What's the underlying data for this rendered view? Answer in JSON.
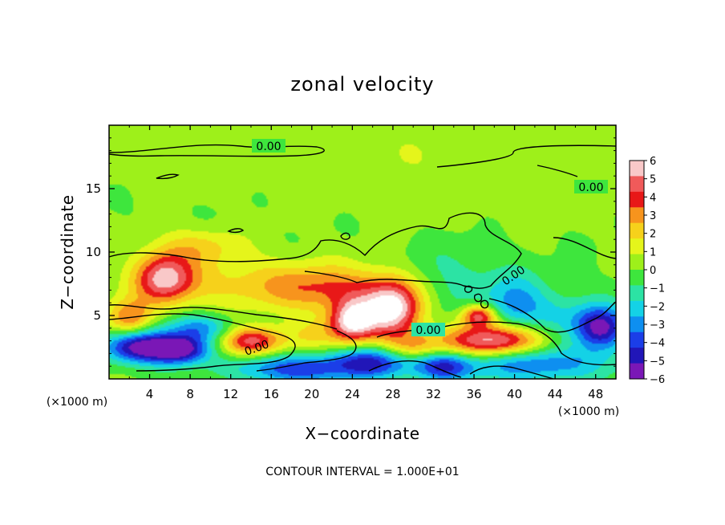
{
  "chart_data": {
    "type": "heatmap",
    "title": "zonal velocity",
    "xlabel": "X−coordinate",
    "ylabel": "Z−coordinate",
    "x_unit": "(×1000 m)",
    "x_unit_right": "(×1000 m)",
    "xlim": [
      0,
      50
    ],
    "ylim": [
      0,
      20
    ],
    "x_ticks": [
      4,
      8,
      12,
      16,
      20,
      24,
      28,
      32,
      36,
      40,
      44,
      48
    ],
    "y_ticks": [
      5,
      10,
      15
    ],
    "colorbar": {
      "ticks": [
        "6",
        "5",
        "4",
        "3",
        "2",
        "1",
        "0",
        "−1",
        "−2",
        "−3",
        "−4",
        "−5",
        "−6"
      ],
      "range": [
        -6,
        6
      ],
      "colors": [
        "#f9c8c8",
        "#f05a5a",
        "#e81818",
        "#f7941d",
        "#f6d11b",
        "#e5f51b",
        "#9ef01a",
        "#3ee63d",
        "#2ce3a4",
        "#14d2e6",
        "#0e8ff0",
        "#1b3ee8",
        "#2116b8",
        "#7a17b6"
      ]
    },
    "contour_label": "0.00",
    "footer": "CONTOUR INTERVAL = 1.000E+01",
    "blobs": [
      {
        "x": 5.5,
        "z": 8.0,
        "sx": 2.0,
        "sz": 1.4,
        "v": 5.0
      },
      {
        "x": 14.0,
        "z": 3.0,
        "sx": 2.2,
        "sz": 0.8,
        "v": 4.8
      },
      {
        "x": 24.0,
        "z": 4.5,
        "sx": 1.6,
        "sz": 1.2,
        "v": 6.0
      },
      {
        "x": 28.0,
        "z": 5.5,
        "sx": 2.0,
        "sz": 1.6,
        "v": 6.5
      },
      {
        "x": 38.0,
        "z": 3.0,
        "sx": 3.5,
        "sz": 0.9,
        "v": 6.0
      },
      {
        "x": 36.5,
        "z": 5.0,
        "sx": 1.2,
        "sz": 0.6,
        "v": 5.0
      },
      {
        "x": 3.0,
        "z": 2.5,
        "sx": 2.5,
        "sz": 0.9,
        "v": -5.5
      },
      {
        "x": 7.0,
        "z": 2.3,
        "sx": 2.0,
        "sz": 0.8,
        "v": -5.5
      },
      {
        "x": 9.0,
        "z": 4.0,
        "sx": 2.5,
        "sz": 0.8,
        "v": -3.0
      },
      {
        "x": 18.0,
        "z": 0.8,
        "sx": 4.0,
        "sz": 0.8,
        "v": -4.0
      },
      {
        "x": 26.0,
        "z": 1.3,
        "sx": 3.0,
        "sz": 0.9,
        "v": -4.5
      },
      {
        "x": 33.0,
        "z": 1.0,
        "sx": 2.0,
        "sz": 0.8,
        "v": -4.0
      },
      {
        "x": 42.0,
        "z": 1.2,
        "sx": 5.0,
        "sz": 1.0,
        "v": -3.5
      },
      {
        "x": 48.5,
        "z": 4.0,
        "sx": 1.8,
        "sz": 1.2,
        "v": -5.5
      },
      {
        "x": 40.0,
        "z": 6.0,
        "sx": 2.0,
        "sz": 1.5,
        "v": -2.5
      },
      {
        "x": 34.0,
        "z": 8.0,
        "sx": 4.0,
        "sz": 2.0,
        "v": -1.2
      },
      {
        "x": 15.0,
        "z": 7.5,
        "sx": 8.0,
        "sz": 1.5,
        "v": 2.0
      },
      {
        "x": 22.0,
        "z": 7.0,
        "sx": 4.0,
        "sz": 1.2,
        "v": 2.2
      },
      {
        "x": 9.0,
        "z": 10.5,
        "sx": 3.0,
        "sz": 1.0,
        "v": 1.8
      },
      {
        "x": 2.0,
        "z": 4.8,
        "sx": 1.5,
        "sz": 1.0,
        "v": 3.5
      },
      {
        "x": 30.0,
        "z": 2.5,
        "sx": 2.0,
        "sz": 0.8,
        "v": 2.5
      },
      {
        "x": 20.0,
        "z": 3.5,
        "sx": 2.0,
        "sz": 1.0,
        "v": 1.5
      },
      {
        "x": 44.0,
        "z": 5.0,
        "sx": 3.0,
        "sz": 1.5,
        "v": -1.5
      },
      {
        "x": 25.0,
        "z": 18.0,
        "sx": 25.0,
        "sz": 2.5,
        "v": 0.6
      },
      {
        "x": 35.0,
        "z": 14.0,
        "sx": 10.0,
        "sz": 2.5,
        "v": 0.3
      }
    ]
  }
}
